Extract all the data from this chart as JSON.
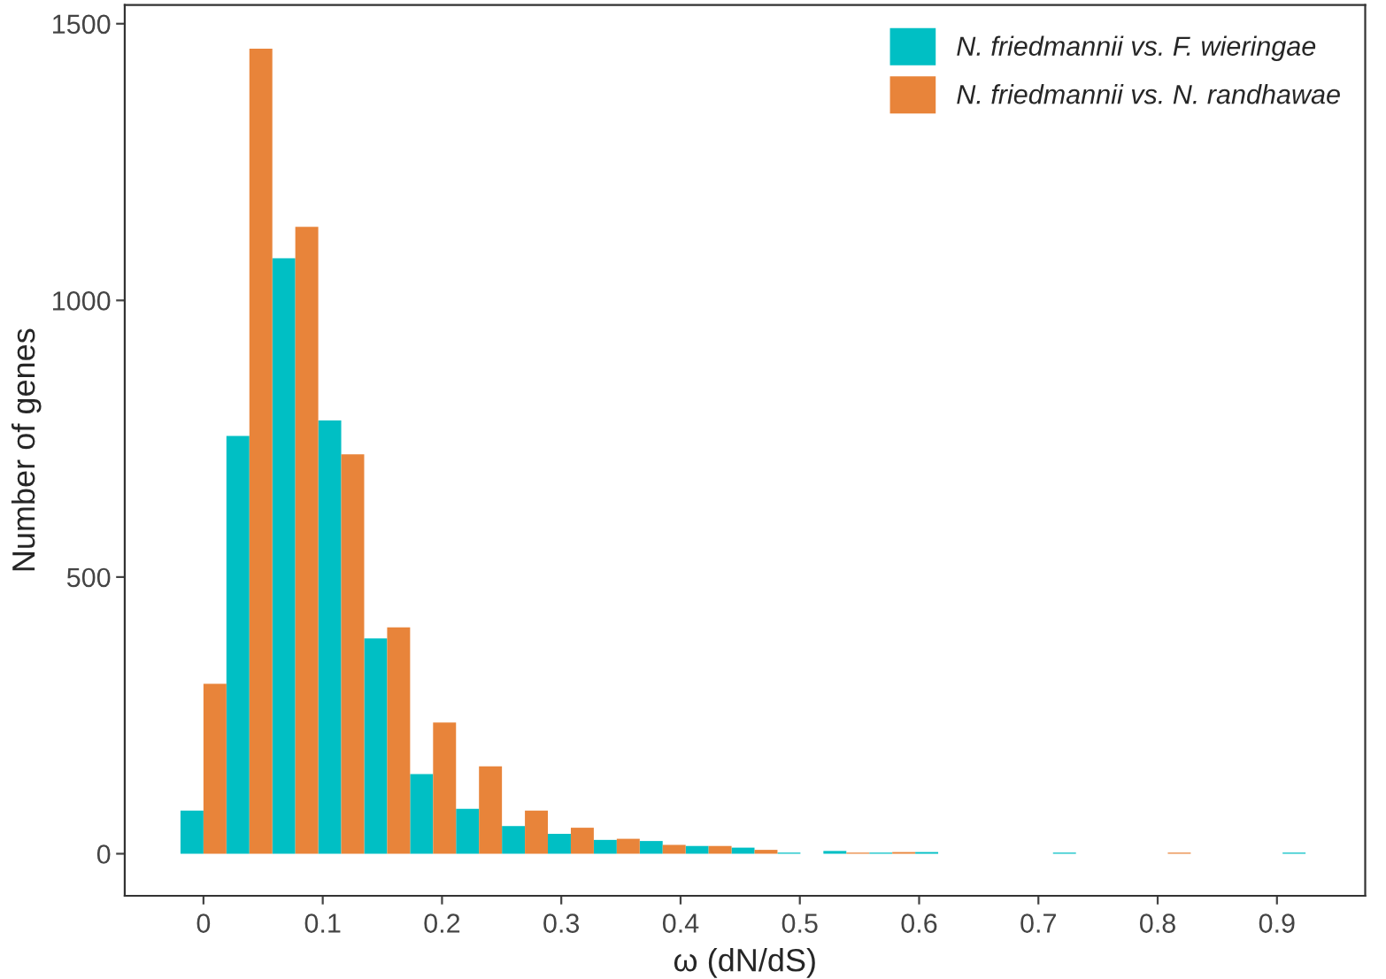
{
  "chart_data": {
    "type": "histogram",
    "xlabel": "ω (dN/dS)",
    "ylabel": "Number of genes",
    "bins": [
      -0.01925,
      0.01925,
      0.05775,
      0.09625,
      0.13475,
      0.17325,
      0.21175,
      0.25025,
      0.28875,
      0.32725,
      0.36575,
      0.40425,
      0.44275,
      0.48125,
      0.51975,
      0.55825,
      0.59675,
      0.63525,
      0.67375,
      0.71225,
      0.75075,
      0.78925,
      0.82775,
      0.86625,
      0.90475,
      0.94325
    ],
    "series": [
      {
        "name": "N. friedmannii vs. F. wieringae",
        "color": "#00bfc4",
        "values": [
          78,
          755,
          1076,
          783,
          389,
          144,
          81,
          50,
          36,
          25,
          23,
          14,
          11,
          2,
          5,
          2,
          3,
          0,
          0,
          2,
          0,
          0,
          0,
          0,
          2
        ]
      },
      {
        "name": "N. friedmannii vs. N. randhawae",
        "color": "#e8843a",
        "values": [
          307,
          1455,
          1133,
          722,
          409,
          237,
          158,
          78,
          47,
          27,
          16,
          14,
          7,
          null,
          2,
          3,
          null,
          0,
          0,
          0,
          0,
          2,
          0,
          0,
          0
        ]
      }
    ],
    "xlim": [
      -0.066,
      0.974
    ],
    "ylim": [
      -76,
      1534
    ],
    "xticks": [
      0,
      0.1,
      0.2,
      0.3,
      0.4,
      0.5,
      0.6,
      0.7,
      0.8,
      0.9
    ],
    "yticks": [
      0,
      500,
      1000,
      1500
    ],
    "grid": false,
    "legend": "top right"
  }
}
